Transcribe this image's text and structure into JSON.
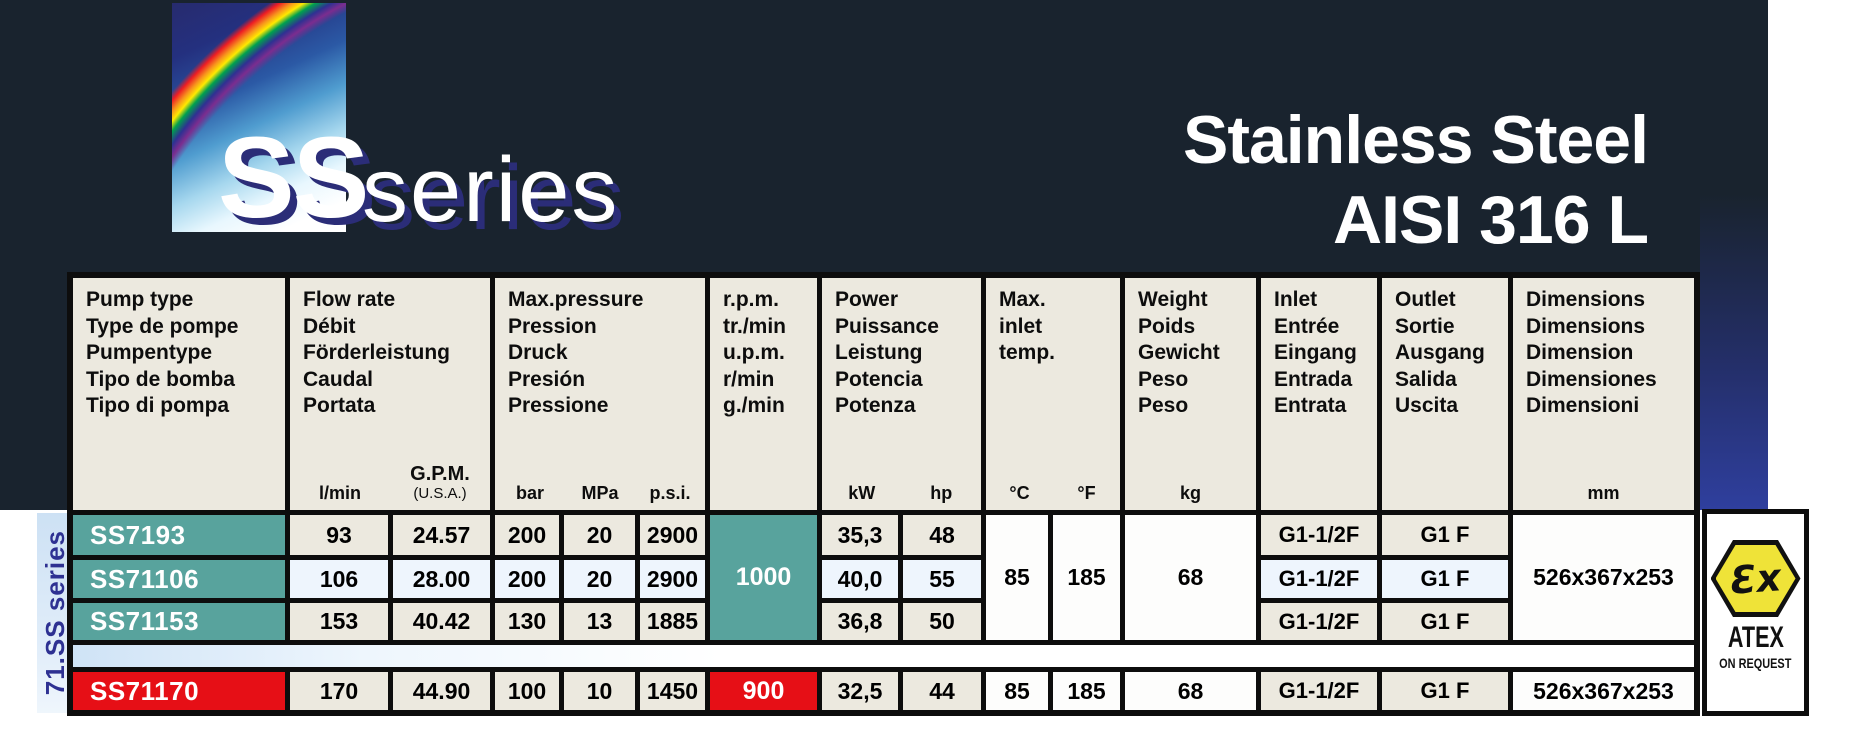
{
  "logo": {
    "ss": "SS",
    "series": "series"
  },
  "title": {
    "line1": "Stainless Steel",
    "line2": "AISI 316 L"
  },
  "side_label": "71.SS series",
  "colors": {
    "teal": "#58a39d",
    "red": "#e60f16",
    "cream": "#ece9df",
    "navy": "#19232e",
    "accent_blue": "#2f3f9e",
    "indigo": "#2e3192",
    "atex_yellow": "#efe338",
    "row_tint": "#eef5fd"
  },
  "header": {
    "pump": {
      "l1": "Pump type",
      "l2": "Type de pompe",
      "l3": "Pumpentype",
      "l4": "Tipo de bomba",
      "l5": "Tipo di pompa"
    },
    "flow": {
      "l1": "Flow rate",
      "l2": "Débit",
      "l3": "Förderleistung",
      "l4": "Caudal",
      "l5": "Portata",
      "u1": "l/min",
      "u2a": "G.P.M.",
      "u2b": "(U.S.A.)"
    },
    "pressure": {
      "l1": "Max.pressure",
      "l2": "Pression",
      "l3": "Druck",
      "l4": "Presión",
      "l5": "Pressione",
      "u1": "bar",
      "u2": "MPa",
      "u3": "p.s.i."
    },
    "rpm": {
      "l1": "r.p.m.",
      "l2": "tr./min",
      "l3": "u.p.m.",
      "l4": "r/min",
      "l5": "g./min"
    },
    "power": {
      "l1": "Power",
      "l2": "Puissance",
      "l3": "Leistung",
      "l4": "Potencia",
      "l5": "Potenza",
      "u1": "kW",
      "u2": "hp"
    },
    "maxinlet": {
      "l1": "Max.",
      "l2": "inlet",
      "l3": "temp.",
      "u1": "°C",
      "u2": "°F"
    },
    "weight": {
      "l1": "Weight",
      "l2": "Poids",
      "l3": "Gewicht",
      "l4": "Peso",
      "l5": "Peso",
      "u1": "kg"
    },
    "inlet": {
      "l1": "Inlet",
      "l2": "Entrée",
      "l3": "Eingang",
      "l4": "Entrada",
      "l5": "Entrata"
    },
    "outlet": {
      "l1": "Outlet",
      "l2": "Sortie",
      "l3": "Ausgang",
      "l4": "Salida",
      "l5": "Uscita"
    },
    "dims": {
      "l1": "Dimensions",
      "l2": "Dimensions",
      "l3": "Dimension",
      "l4": "Dimensiones",
      "l5": "Dimensioni",
      "u1": "mm"
    }
  },
  "rows": {
    "r1": {
      "name": "SS7193",
      "lmin": "93",
      "gpm": "24.57",
      "bar": "200",
      "mpa": "20",
      "psi": "2900",
      "kw": "35,3",
      "hp": "48",
      "inlet": "G1-1/2F",
      "outlet": "G1 F"
    },
    "r2": {
      "name": "SS71106",
      "lmin": "106",
      "gpm": "28.00",
      "bar": "200",
      "mpa": "20",
      "psi": "2900",
      "kw": "40,0",
      "hp": "55",
      "inlet": "G1-1/2F",
      "outlet": "G1 F"
    },
    "r3": {
      "name": "SS71153",
      "lmin": "153",
      "gpm": "40.42",
      "bar": "130",
      "mpa": "13",
      "psi": "1885",
      "kw": "36,8",
      "hp": "50",
      "inlet": "G1-1/2F",
      "outlet": "G1 F"
    },
    "r4": {
      "name": "SS71170",
      "lmin": "170",
      "gpm": "44.90",
      "bar": "100",
      "mpa": "10",
      "psi": "1450",
      "rpm": "900",
      "kw": "32,5",
      "hp": "44",
      "c": "85",
      "f": "185",
      "kg": "68",
      "inlet": "G1-1/2F",
      "outlet": "G1 F",
      "dim": "526x367x253"
    }
  },
  "merged": {
    "rpm": "1000",
    "c": "85",
    "f": "185",
    "kg": "68",
    "dim": "526x367x253"
  },
  "atex": {
    "ex_symbol": "Ɛx",
    "label": "ATEX",
    "sublabel": "ON REQUEST"
  }
}
